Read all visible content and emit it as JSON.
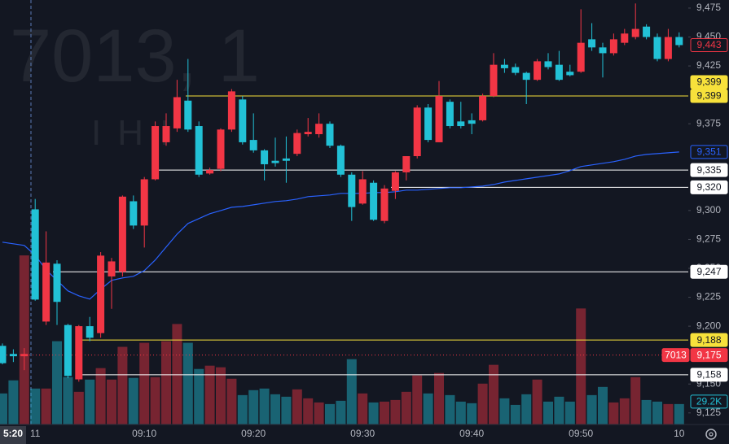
{
  "chart_data": {
    "type": "candlestick",
    "watermark": "7013, 1",
    "watermark_sub": "IHI",
    "categories": [
      null,
      "5:20",
      null,
      "11",
      null,
      null,
      null,
      null,
      null,
      null,
      null,
      null,
      null,
      "09:10",
      null,
      null,
      null,
      null,
      null,
      null,
      null,
      null,
      null,
      "09:20",
      null,
      null,
      null,
      null,
      null,
      null,
      null,
      null,
      null,
      "09:30",
      null,
      null,
      null,
      null,
      null,
      null,
      null,
      null,
      null,
      "09:40",
      null,
      null,
      null,
      null,
      null,
      null,
      null,
      null,
      null,
      "09:50",
      null,
      null,
      null,
      null,
      null,
      null,
      null,
      null,
      "10"
    ],
    "open": [
      9183,
      9176,
      9174,
      9301,
      9204,
      9254,
      9201,
      9154,
      9200,
      9194,
      9243,
      9247,
      9308,
      9287,
      9327,
      9359,
      9371,
      9395,
      9373,
      9332,
      9336,
      9370,
      9396,
      9361,
      9352,
      9343,
      9345,
      9349,
      9366,
      9366,
      9375,
      9356,
      9331,
      9306,
      9324,
      9291,
      9317,
      9333,
      9347,
      9389,
      9359,
      9394,
      9377,
      9378,
      9378,
      9399,
      9426,
      9424,
      9419,
      9413,
      9429,
      9426,
      9420,
      9420,
      9448,
      9441,
      9436,
      9445,
      9450,
      9459,
      9450,
      9431,
      9450
    ],
    "high": [
      9185,
      9180,
      9181,
      9310,
      9282,
      9257,
      9202,
      9201,
      9208,
      9264,
      9259,
      9313,
      9313,
      9329,
      9377,
      9384,
      9413,
      9431,
      9377,
      9337,
      9371,
      9405,
      9399,
      9384,
      9353,
      9363,
      9364,
      9370,
      9380,
      9384,
      9377,
      9357,
      9333,
      9334,
      9326,
      9322,
      9334,
      9347,
      9391,
      9392,
      9412,
      9396,
      9394,
      9384,
      9401,
      9436,
      9431,
      9427,
      9420,
      9431,
      9436,
      9438,
      9426,
      9474,
      9462,
      9445,
      9453,
      9457,
      9479,
      9461,
      9453,
      9457,
      9454
    ],
    "low": [
      9167,
      9169,
      9162,
      9222,
      9201,
      9201,
      9155,
      9152,
      9187,
      9190,
      9215,
      9243,
      9284,
      9268,
      9326,
      9356,
      9368,
      9368,
      9329,
      9331,
      9334,
      9368,
      9357,
      9350,
      9326,
      9338,
      9324,
      9347,
      9364,
      9363,
      9354,
      9329,
      9291,
      9305,
      9291,
      9289,
      9310,
      9326,
      9345,
      9359,
      9359,
      9371,
      9371,
      9366,
      9377,
      9398,
      9419,
      9417,
      9392,
      9412,
      9422,
      9412,
      9416,
      9419,
      9438,
      9415,
      9434,
      9443,
      9448,
      9448,
      9429,
      9429,
      9441
    ],
    "close": [
      9168,
      9174,
      9176,
      9223,
      9255,
      9221,
      9157,
      9200,
      9190,
      9261,
      9256,
      9312,
      9287,
      9327,
      9373,
      9373,
      9398,
      9370,
      9331,
      9335,
      9370,
      9403,
      9359,
      9352,
      9340,
      9341,
      9343,
      9367,
      9368,
      9375,
      9356,
      9331,
      9303,
      9327,
      9292,
      9319,
      9333,
      9347,
      9389,
      9361,
      9399,
      9373,
      9373,
      9375,
      9399,
      9426,
      9423,
      9419,
      9413,
      9429,
      9424,
      9413,
      9417,
      9445,
      9441,
      9436,
      9448,
      9453,
      9457,
      9450,
      9431,
      9450,
      9443
    ],
    "last_label": "9,443",
    "up_color": "#f23645",
    "down_color": "#22c1d6",
    "volume": [
      44400,
      63100,
      241800,
      51400,
      51400,
      119100,
      67700,
      46700,
      64200,
      80600,
      64200,
      111000,
      66600,
      116800,
      67700,
      119100,
      143700,
      116800,
      79400,
      84100,
      81800,
      65400,
      42000,
      49100,
      51400,
      43200,
      39700,
      50200,
      37400,
      31500,
      29200,
      33900,
      93400,
      44400,
      31500,
      32700,
      35000,
      46700,
      70100,
      44400,
      73600,
      42000,
      32700,
      30400,
      58400,
      85300,
      37400,
      28000,
      43200,
      64200,
      32700,
      39700,
      32700,
      165900,
      42000,
      53700,
      31500,
      37400,
      67700,
      35000,
      32700,
      29200,
      29200
    ],
    "volume_lim": [
      0,
      607000
    ],
    "volume_label": "29.2K",
    "ma": {
      "color": "#2962ff",
      "label": "9,351",
      "values": [
        9272.6,
        9271.2,
        9269.8,
        9261.4,
        9248.7,
        9239.6,
        9230.5,
        9226.2,
        9223.4,
        9231.9,
        9239.6,
        9241.7,
        9243.1,
        9248.0,
        9257.2,
        9268.4,
        9279.6,
        9288.8,
        9293.0,
        9297.2,
        9300.0,
        9302.8,
        9303.5,
        9304.9,
        9306.4,
        9307.8,
        9308.5,
        9309.9,
        9312.0,
        9312.7,
        9313.4,
        9314.8,
        9314.8,
        9314.8,
        9315.5,
        9315.5,
        9316.2,
        9317.6,
        9317.6,
        9318.3,
        9319.0,
        9319.7,
        9319.7,
        9320.4,
        9321.1,
        9322.5,
        9324.6,
        9326.0,
        9327.4,
        9328.8,
        9330.2,
        9331.6,
        9334.5,
        9338.0,
        9339.4,
        9340.8,
        9342.2,
        9344.3,
        9347.1,
        9348.5,
        9349.2,
        9349.9,
        9350.6
      ]
    },
    "ylim": [
      9115,
      9482
    ],
    "yticks": [
      {
        "value": 9125,
        "label": "9,125"
      },
      {
        "value": 9150,
        "label": "9,150"
      },
      {
        "value": 9200,
        "label": "9,200"
      },
      {
        "value": 9225,
        "label": "9,225"
      },
      {
        "value": 9250,
        "label": "9,250"
      },
      {
        "value": 9275,
        "label": "9,275"
      },
      {
        "value": 9300,
        "label": "9,300"
      },
      {
        "value": 9375,
        "label": "9,375"
      },
      {
        "value": 9425,
        "label": "9,425"
      },
      {
        "value": 9450,
        "label": "9,450"
      },
      {
        "value": 9475,
        "label": "9,475"
      }
    ],
    "price_lines": [
      {
        "value": 9399,
        "label": "9,399",
        "color": "#f7e13b"
      },
      {
        "value": 9335,
        "label": "9,335",
        "color": "#ffffff"
      },
      {
        "value": 9320,
        "label": "9,320",
        "color": "#ffffff"
      },
      {
        "value": 9247,
        "label": "9,247",
        "color": "#ffffff"
      },
      {
        "value": 9188,
        "label": "9,188",
        "color": "#f7e13b"
      },
      {
        "value": 9158,
        "label": "9,158",
        "color": "#ffffff"
      }
    ],
    "alert": {
      "value": 9399,
      "label": "9,399",
      "color": "#f7e13b"
    },
    "prev_close": {
      "value": 9175,
      "label": "9,175",
      "symbol": "7013",
      "color": "#f23645"
    }
  }
}
